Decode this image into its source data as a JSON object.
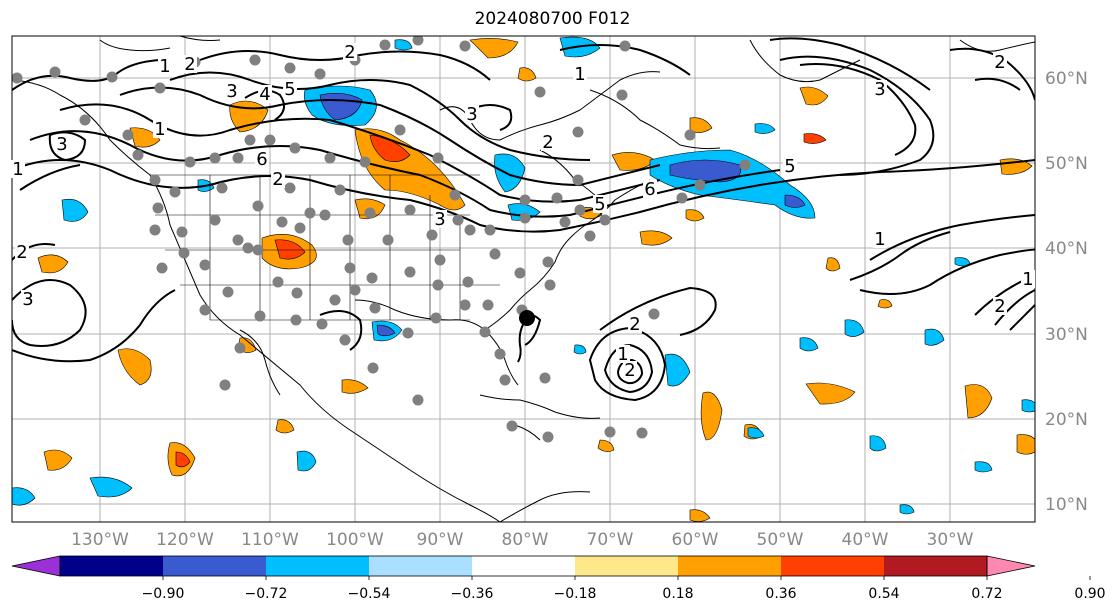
{
  "title": "2024080700 F012",
  "map": {
    "lon_labels": [
      "130°W",
      "120°W",
      "110°W",
      "100°W",
      "90°W",
      "80°W",
      "70°W",
      "60°W",
      "50°W",
      "40°W",
      "30°W"
    ],
    "lat_labels": [
      "60°N",
      "50°N",
      "40°N",
      "30°N",
      "20°N",
      "10°N"
    ],
    "contour_labels": [
      "1",
      "2",
      "3",
      "4",
      "5",
      "6",
      "2",
      "1",
      "3",
      "2",
      "3",
      "1",
      "2",
      "3",
      "2",
      "1",
      "2",
      "1",
      "2",
      "3",
      "5",
      "6",
      "5",
      "1",
      "2",
      "1",
      "2",
      "3"
    ]
  },
  "colorbar": {
    "ticks": [
      "−0.90",
      "−0.72",
      "−0.54",
      "−0.36",
      "−0.18",
      "0.18",
      "0.36",
      "0.54",
      "0.72",
      "0.90"
    ],
    "colors": [
      "#9b30d8",
      "#000088",
      "#3a5ad0",
      "#00bfff",
      "#aadfff",
      "#ffffff",
      "#ffe88a",
      "#ffa000",
      "#ff4000",
      "#b01a20",
      "#ff88b0"
    ]
  }
}
